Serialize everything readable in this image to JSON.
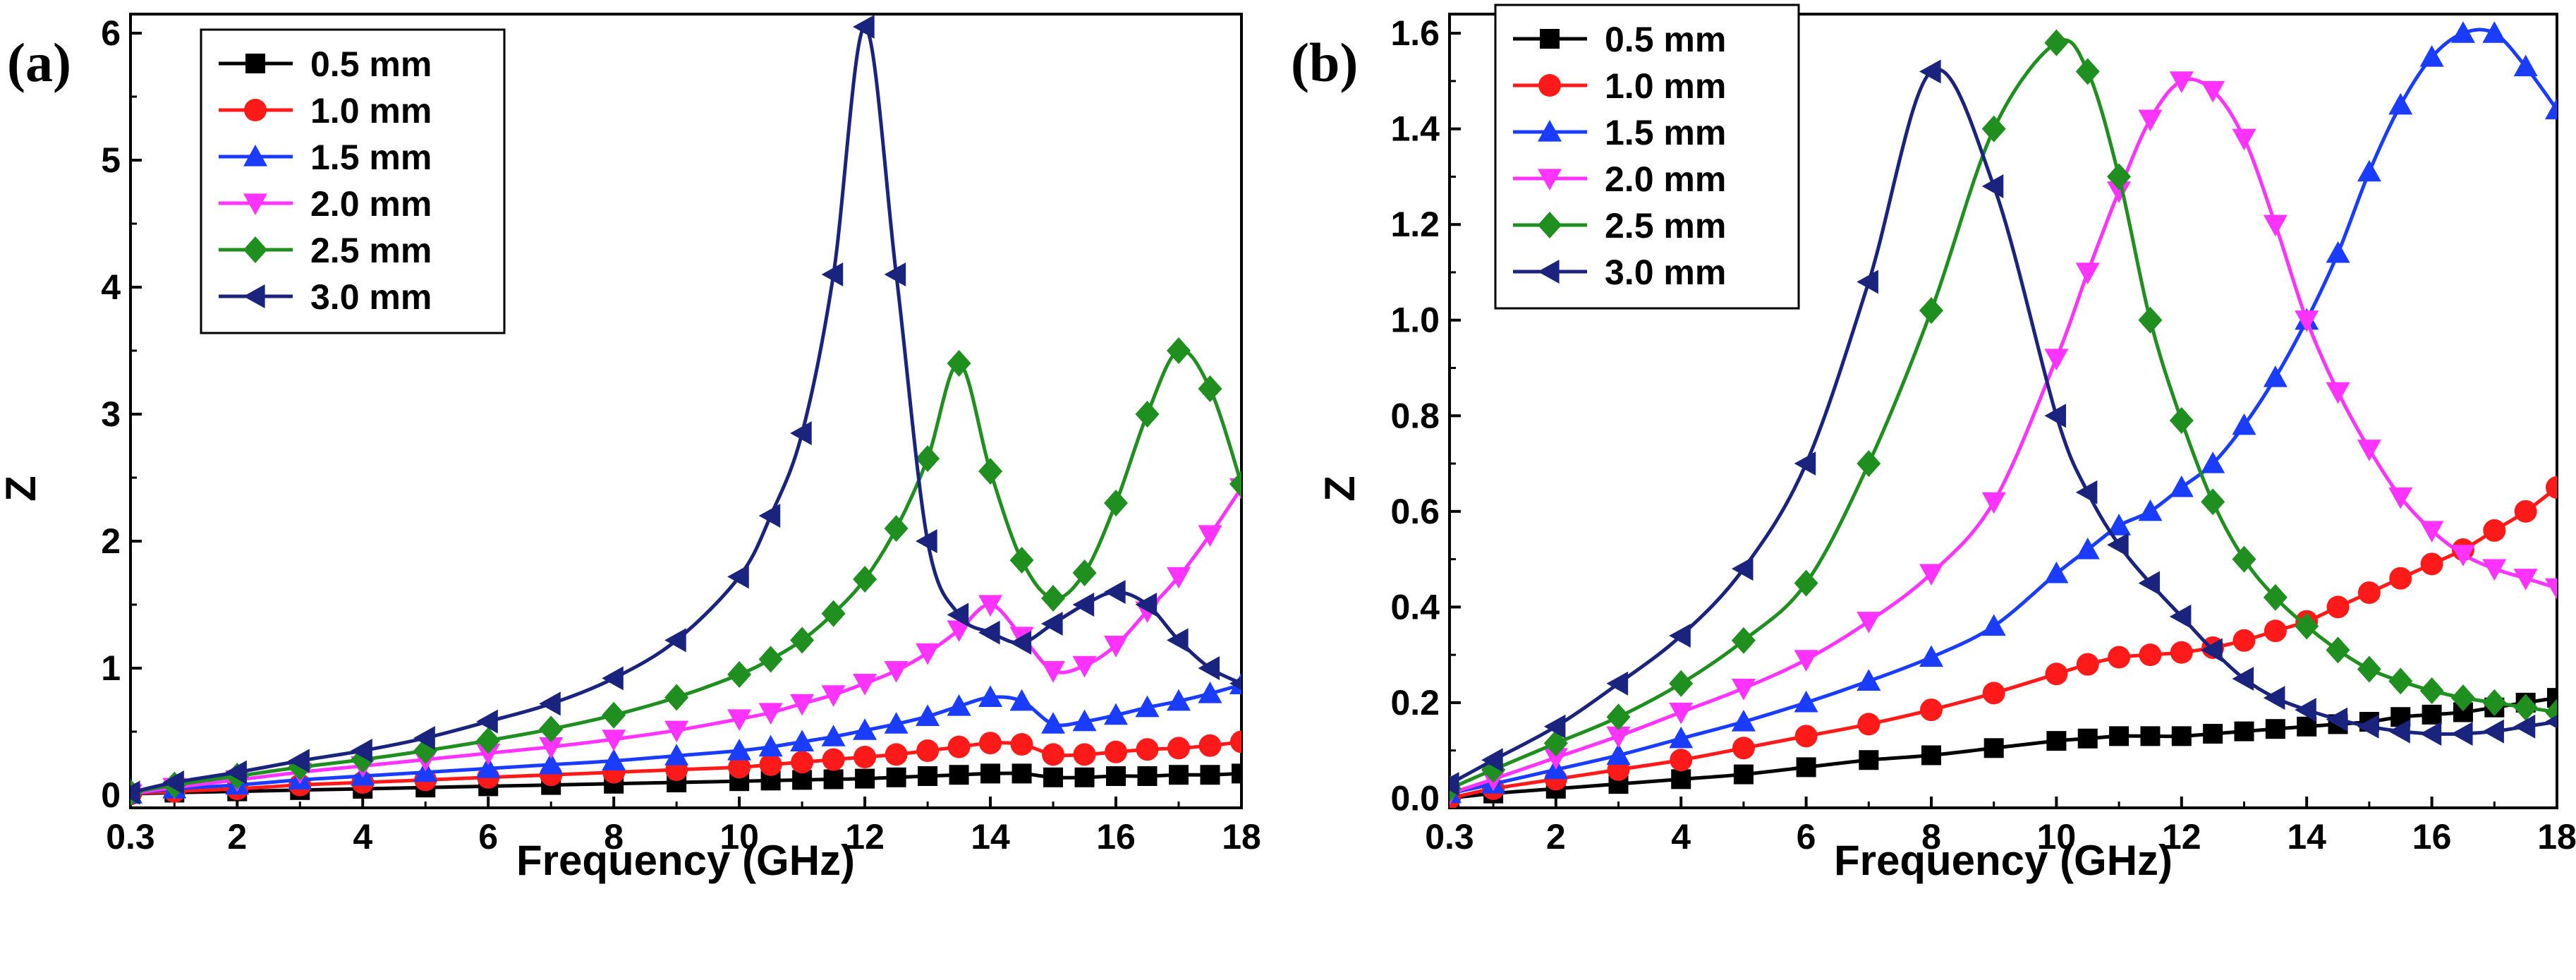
{
  "chart_data": [
    {
      "type": "line",
      "panel_label": "(a)",
      "xlabel": "Frequency (GHz)",
      "ylabel": "Z",
      "xlim": [
        0.3,
        18
      ],
      "ylim": [
        -0.1,
        6.15
      ],
      "xticks": [
        0.3,
        2,
        4,
        6,
        8,
        10,
        12,
        14,
        16,
        18
      ],
      "xtick_labels": [
        "0.3",
        "2",
        "4",
        "6",
        "8",
        "10",
        "12",
        "14",
        "16",
        "18"
      ],
      "yticks": [
        0,
        1,
        2,
        3,
        4,
        5,
        6
      ],
      "ytick_labels": [
        "0",
        "1",
        "2",
        "3",
        "4",
        "5",
        "6"
      ],
      "legend_position": "top-left",
      "x": [
        0.3,
        1,
        2,
        3,
        4,
        5,
        6,
        7,
        8,
        9,
        10,
        10.5,
        11,
        11.5,
        12,
        12.5,
        13,
        13.5,
        14,
        14.5,
        15,
        15.5,
        16,
        16.5,
        17,
        17.5,
        18
      ],
      "series": [
        {
          "name": "0.5 mm",
          "color": "#000000",
          "marker": "square",
          "values": [
            0.01,
            0.02,
            0.03,
            0.04,
            0.05,
            0.06,
            0.07,
            0.08,
            0.09,
            0.1,
            0.11,
            0.115,
            0.12,
            0.125,
            0.13,
            0.14,
            0.15,
            0.16,
            0.17,
            0.17,
            0.14,
            0.14,
            0.15,
            0.15,
            0.16,
            0.16,
            0.17
          ]
        },
        {
          "name": "1.0 mm",
          "color": "#ff1a1a",
          "marker": "circle",
          "values": [
            0.01,
            0.03,
            0.05,
            0.08,
            0.1,
            0.12,
            0.14,
            0.16,
            0.18,
            0.2,
            0.22,
            0.24,
            0.26,
            0.28,
            0.3,
            0.32,
            0.35,
            0.38,
            0.41,
            0.4,
            0.32,
            0.32,
            0.34,
            0.36,
            0.37,
            0.39,
            0.42
          ]
        },
        {
          "name": "1.5 mm",
          "color": "#1a3cff",
          "marker": "triangle-up",
          "values": [
            0.01,
            0.05,
            0.08,
            0.12,
            0.15,
            0.18,
            0.21,
            0.24,
            0.27,
            0.31,
            0.35,
            0.38,
            0.42,
            0.46,
            0.51,
            0.56,
            0.62,
            0.7,
            0.77,
            0.74,
            0.56,
            0.58,
            0.63,
            0.69,
            0.74,
            0.8,
            0.87
          ]
        },
        {
          "name": "2.0 mm",
          "color": "#ff33ff",
          "marker": "triangle-down",
          "values": [
            0.01,
            0.06,
            0.12,
            0.18,
            0.23,
            0.28,
            0.33,
            0.38,
            0.44,
            0.51,
            0.6,
            0.65,
            0.72,
            0.79,
            0.88,
            0.98,
            1.12,
            1.3,
            1.5,
            1.25,
            0.98,
            1.02,
            1.18,
            1.45,
            1.72,
            2.05,
            2.42
          ]
        },
        {
          "name": "2.5 mm",
          "color": "#1f8f1f",
          "marker": "diamond",
          "values": [
            0.02,
            0.08,
            0.15,
            0.22,
            0.28,
            0.35,
            0.43,
            0.52,
            0.63,
            0.77,
            0.95,
            1.07,
            1.22,
            1.43,
            1.7,
            2.1,
            2.65,
            3.4,
            2.55,
            1.85,
            1.55,
            1.75,
            2.3,
            3.0,
            3.5,
            3.2,
            2.45
          ]
        },
        {
          "name": "3.0 mm",
          "color": "#1a237e",
          "marker": "triangle-left",
          "values": [
            0.02,
            0.1,
            0.18,
            0.27,
            0.35,
            0.45,
            0.58,
            0.72,
            0.92,
            1.22,
            1.72,
            2.2,
            2.85,
            4.1,
            6.05,
            4.1,
            2.0,
            1.42,
            1.28,
            1.2,
            1.35,
            1.5,
            1.6,
            1.5,
            1.22,
            1.0,
            0.88
          ]
        }
      ]
    },
    {
      "type": "line",
      "panel_label": "(b)",
      "xlabel": "Frequency (GHz)",
      "ylabel": "Z",
      "xlim": [
        0.3,
        18
      ],
      "ylim": [
        -0.02,
        1.64
      ],
      "xticks": [
        0.3,
        2,
        4,
        6,
        8,
        10,
        12,
        14,
        16,
        18
      ],
      "xtick_labels": [
        "0.3",
        "2",
        "4",
        "6",
        "8",
        "10",
        "12",
        "14",
        "16",
        "18"
      ],
      "yticks": [
        0,
        0.2,
        0.4,
        0.6,
        0.8,
        1.0,
        1.2,
        1.4,
        1.6
      ],
      "ytick_labels": [
        "0.0",
        "0.2",
        "0.4",
        "0.6",
        "0.8",
        "1.0",
        "1.2",
        "1.4",
        "1.6"
      ],
      "legend_position": "top-left",
      "x": [
        0.3,
        1,
        2,
        3,
        4,
        5,
        6,
        7,
        8,
        9,
        10,
        10.5,
        11,
        11.5,
        12,
        12.5,
        13,
        13.5,
        14,
        14.5,
        15,
        15.5,
        16,
        16.5,
        17,
        17.5,
        18
      ],
      "series": [
        {
          "name": "0.5 mm",
          "color": "#000000",
          "marker": "square",
          "values": [
            0.0,
            0.01,
            0.02,
            0.03,
            0.04,
            0.05,
            0.065,
            0.08,
            0.09,
            0.105,
            0.12,
            0.125,
            0.13,
            0.13,
            0.13,
            0.135,
            0.14,
            0.145,
            0.15,
            0.155,
            0.16,
            0.17,
            0.175,
            0.18,
            0.19,
            0.2,
            0.21
          ]
        },
        {
          "name": "1.0 mm",
          "color": "#ff1a1a",
          "marker": "circle",
          "values": [
            0.0,
            0.02,
            0.04,
            0.06,
            0.08,
            0.105,
            0.13,
            0.155,
            0.185,
            0.22,
            0.26,
            0.28,
            0.295,
            0.3,
            0.305,
            0.315,
            0.33,
            0.35,
            0.37,
            0.4,
            0.43,
            0.46,
            0.49,
            0.52,
            0.56,
            0.6,
            0.65
          ]
        },
        {
          "name": "1.5 mm",
          "color": "#1a3cff",
          "marker": "triangle-up",
          "values": [
            0.01,
            0.03,
            0.06,
            0.09,
            0.125,
            0.16,
            0.2,
            0.245,
            0.295,
            0.36,
            0.47,
            0.52,
            0.57,
            0.6,
            0.65,
            0.7,
            0.78,
            0.88,
            1.0,
            1.14,
            1.31,
            1.45,
            1.55,
            1.6,
            1.6,
            1.53,
            1.44
          ]
        },
        {
          "name": "2.0 mm",
          "color": "#ff33ff",
          "marker": "triangle-down",
          "values": [
            0.01,
            0.04,
            0.085,
            0.13,
            0.18,
            0.23,
            0.29,
            0.37,
            0.47,
            0.62,
            0.92,
            1.1,
            1.27,
            1.42,
            1.5,
            1.48,
            1.38,
            1.2,
            1.0,
            0.85,
            0.73,
            0.63,
            0.56,
            0.51,
            0.48,
            0.46,
            0.44
          ]
        },
        {
          "name": "2.5 mm",
          "color": "#1f8f1f",
          "marker": "diamond",
          "values": [
            0.02,
            0.06,
            0.115,
            0.17,
            0.24,
            0.33,
            0.45,
            0.7,
            1.02,
            1.4,
            1.58,
            1.52,
            1.3,
            1.0,
            0.79,
            0.62,
            0.5,
            0.42,
            0.36,
            0.31,
            0.27,
            0.245,
            0.225,
            0.21,
            0.2,
            0.19,
            0.18
          ]
        },
        {
          "name": "3.0 mm",
          "color": "#1a237e",
          "marker": "triangle-left",
          "values": [
            0.03,
            0.08,
            0.15,
            0.24,
            0.34,
            0.48,
            0.7,
            1.08,
            1.52,
            1.28,
            0.8,
            0.64,
            0.53,
            0.45,
            0.38,
            0.31,
            0.25,
            0.21,
            0.185,
            0.165,
            0.15,
            0.14,
            0.135,
            0.135,
            0.14,
            0.15,
            0.16
          ]
        }
      ]
    }
  ]
}
